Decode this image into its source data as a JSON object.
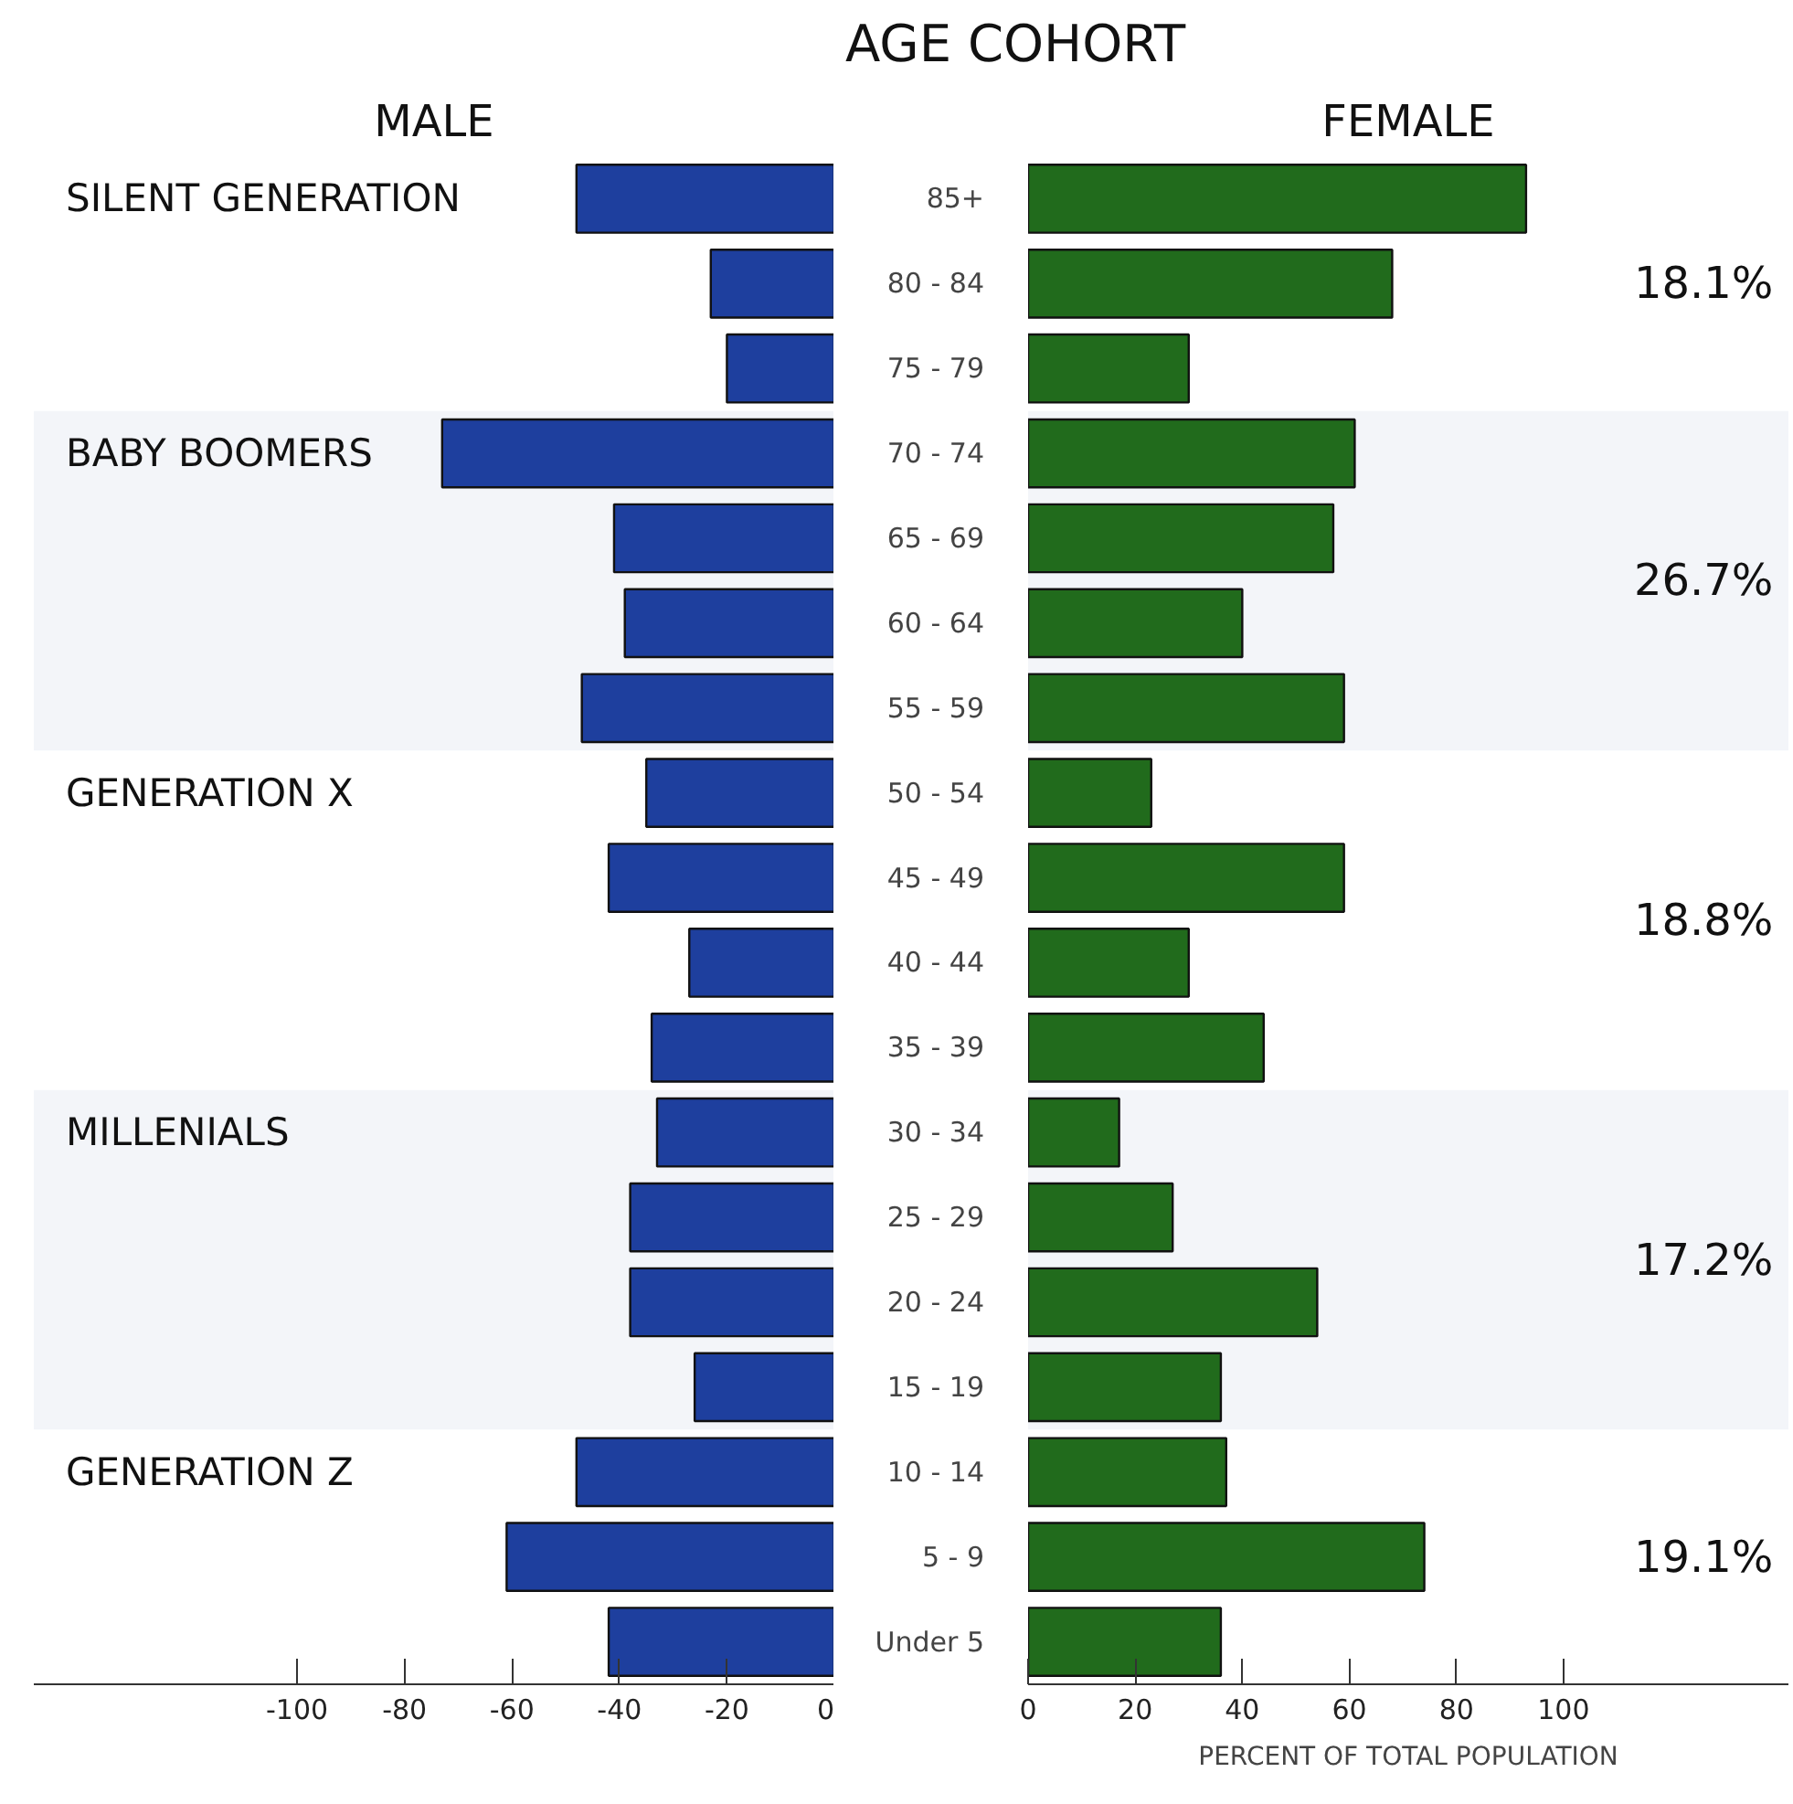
{
  "chart_data": [
    {
      "type": "bar",
      "orientation": "horizontal",
      "categories": [
        "85+",
        "80 - 84",
        "75 - 79",
        "70 - 74",
        "65 - 69",
        "60 - 64",
        "55 - 59",
        "50 - 54",
        "45 - 49",
        "40 - 44",
        "35 - 39",
        "30 - 34",
        "25 - 29",
        "20 - 24",
        "15 - 19",
        "10 - 14",
        "5 - 9",
        "Under 5"
      ],
      "series": [
        {
          "name": "MALE",
          "color": "#1e3f9e",
          "values": [
            -48,
            -23,
            -20,
            -73,
            -41,
            -39,
            -47,
            -35,
            -42,
            -27,
            -34,
            -33,
            -38,
            -38,
            -26,
            -48,
            -61,
            -42
          ]
        }
      ],
      "xlim": [
        -149,
        0
      ],
      "xticks": [
        -100,
        -80,
        -60,
        -40,
        -20,
        0
      ],
      "tick_labels": "x",
      "grid": false,
      "bands": [
        {
          "axis": "y",
          "from": "70 - 74",
          "to": "55 - 59",
          "color": "#f3f5f9"
        },
        {
          "axis": "y",
          "from": "30 - 34",
          "to": "15 - 19",
          "color": "#f3f5f9"
        }
      ],
      "annotations": [
        "SILENT GENERATION",
        "BABY BOOMERS",
        "GENERATION X",
        "MILLENIALS",
        "GENERATION Z"
      ]
    },
    {
      "type": "bar",
      "orientation": "horizontal",
      "title": "AGE COHORT",
      "xlabel": "PERCENT OF TOTAL POPULATION",
      "categories": [
        "85+",
        "80 - 84",
        "75 - 79",
        "70 - 74",
        "65 - 69",
        "60 - 64",
        "55 - 59",
        "50 - 54",
        "45 - 49",
        "40 - 44",
        "35 - 39",
        "30 - 34",
        "25 - 29",
        "20 - 24",
        "15 - 19",
        "10 - 14",
        "5 - 9",
        "Under 5"
      ],
      "series": [
        {
          "name": "FEMALE",
          "color": "#216b1c",
          "values": [
            93,
            68,
            30,
            61,
            57,
            40,
            59,
            23,
            59,
            30,
            44,
            17,
            27,
            54,
            36,
            37,
            74,
            36
          ]
        }
      ],
      "xlim": [
        0,
        142
      ],
      "xticks": [
        0,
        20,
        40,
        60,
        80,
        100
      ],
      "grid": false,
      "bands": [
        {
          "axis": "y",
          "from": "70 - 74",
          "to": "55 - 59",
          "color": "#f3f5f9"
        },
        {
          "axis": "y",
          "from": "30 - 34",
          "to": "15 - 19",
          "color": "#f3f5f9"
        }
      ],
      "annotations": [
        "18.1%",
        "26.7%",
        "18.8%",
        "17.2%",
        "19.1%"
      ]
    }
  ]
}
